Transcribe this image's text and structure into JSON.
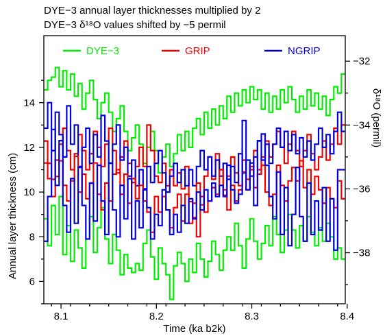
{
  "chart_data": {
    "type": "line",
    "title_lines": [
      "DYE−3 annual layer thicknesses multiplied by 2",
      "DYE−3 δ¹⁸O values shifted by −5 permil"
    ],
    "xlabel": "Time (ka b2k)",
    "ylabel_left": "Annual layer thickness (cm)",
    "ylabel_right": "δ¹⁸O (permil)",
    "xlim": [
      8.082,
      8.398
    ],
    "ylim_left": [
      5,
      17
    ],
    "ylim_right": [
      -39.6,
      -31.2
    ],
    "xticks": [
      8.1,
      8.2,
      8.3,
      8.4
    ],
    "xtick_labels": [
      "8.1",
      "8.2",
      "8.3",
      "8.4"
    ],
    "yticks_left": [
      6,
      8,
      10,
      12,
      14
    ],
    "ytick_labels_left": [
      "6",
      "8",
      "10",
      "12",
      "14"
    ],
    "yticks_right": [
      -38,
      -36,
      -34,
      -32
    ],
    "ytick_labels_right": [
      "−38",
      "−36",
      "−34",
      "−32"
    ],
    "legend": {
      "placement": "top",
      "entries": [
        "DYE−3",
        "GRIP",
        "NGRIP"
      ]
    },
    "colors": {
      "DYE−3": "#00ee00",
      "GRIP": "#ee0000",
      "NGRIP": "#0000dd"
    },
    "series": [
      {
        "name": "DYE−3",
        "axis": "right",
        "group": "d18O",
        "x": [
          8.082,
          8.086,
          8.09,
          8.094,
          8.098,
          8.102,
          8.106,
          8.11,
          8.114,
          8.118,
          8.122,
          8.126,
          8.13,
          8.134,
          8.138,
          8.142,
          8.146,
          8.15,
          8.154,
          8.158,
          8.162,
          8.166,
          8.17,
          8.174,
          8.178,
          8.182,
          8.186,
          8.19,
          8.194,
          8.198,
          8.202,
          8.206,
          8.21,
          8.214,
          8.218,
          8.222,
          8.226,
          8.23,
          8.234,
          8.238,
          8.242,
          8.246,
          8.25,
          8.254,
          8.258,
          8.262,
          8.266,
          8.27,
          8.274,
          8.278,
          8.282,
          8.286,
          8.29,
          8.294,
          8.298,
          8.302,
          8.306,
          8.31,
          8.314,
          8.318,
          8.322,
          8.326,
          8.33,
          8.334,
          8.338,
          8.342,
          8.346,
          8.35,
          8.354,
          8.358,
          8.362,
          8.366,
          8.37,
          8.374,
          8.378,
          8.382,
          8.386,
          8.39,
          8.394
        ],
        "y": [
          -32.9,
          -32.6,
          -32.5,
          -32.2,
          -32.8,
          -32.3,
          -32.9,
          -32.4,
          -33.1,
          -32.7,
          -33.5,
          -33.0,
          -32.6,
          -33.2,
          -33.8,
          -33.3,
          -33.0,
          -33.6,
          -34.2,
          -33.8,
          -33.4,
          -34.2,
          -34.8,
          -34.4,
          -34.0,
          -34.6,
          -35.2,
          -34.7,
          -34.2,
          -34.8,
          -35.5,
          -35.0,
          -34.6,
          -35.3,
          -34.9,
          -34.3,
          -34.8,
          -34.2,
          -34.7,
          -34.1,
          -33.8,
          -34.3,
          -33.6,
          -34.1,
          -33.5,
          -34.0,
          -33.4,
          -33.8,
          -33.1,
          -33.6,
          -33.0,
          -33.4,
          -32.9,
          -33.3,
          -32.8,
          -33.2,
          -32.9,
          -33.5,
          -33.0,
          -33.6,
          -33.1,
          -33.5,
          -32.9,
          -33.3,
          -32.8,
          -33.2,
          -33.6,
          -33.1,
          -33.5,
          -32.9,
          -33.4,
          -33.0,
          -33.5,
          -33.1,
          -33.7,
          -33.2,
          -32.8,
          -33.0,
          -32.4
        ]
      },
      {
        "name": "GRIP",
        "axis": "right",
        "group": "d18O",
        "x": [
          8.082,
          8.086,
          8.09,
          8.094,
          8.098,
          8.102,
          8.106,
          8.11,
          8.114,
          8.118,
          8.122,
          8.126,
          8.13,
          8.134,
          8.138,
          8.142,
          8.146,
          8.15,
          8.154,
          8.158,
          8.162,
          8.166,
          8.17,
          8.174,
          8.178,
          8.182,
          8.186,
          8.19,
          8.194,
          8.198,
          8.202,
          8.206,
          8.21,
          8.214,
          8.218,
          8.222,
          8.226,
          8.23,
          8.234,
          8.238,
          8.242,
          8.246,
          8.25,
          8.254,
          8.258,
          8.262,
          8.266,
          8.27,
          8.274,
          8.278,
          8.282,
          8.286,
          8.29,
          8.294,
          8.298,
          8.302,
          8.306,
          8.31,
          8.314,
          8.318,
          8.322,
          8.326,
          8.33,
          8.334,
          8.338,
          8.342,
          8.346,
          8.35,
          8.354,
          8.358,
          8.362,
          8.366,
          8.37,
          8.374,
          8.378,
          8.382,
          8.386,
          8.39,
          8.394
        ],
        "y": [
          -34.5,
          -35.2,
          -35.7,
          -35.1,
          -34.6,
          -34.1,
          -34.8,
          -35.4,
          -34.9,
          -34.3,
          -34.8,
          -35.4,
          -34.9,
          -34.2,
          -34.7,
          -35.3,
          -34.6,
          -34.1,
          -34.8,
          -35.5,
          -35.0,
          -34.5,
          -35.2,
          -35.8,
          -35.3,
          -34.7,
          -35.3,
          -34.0,
          -34.8,
          -35.6,
          -35.8,
          -35.2,
          -35.9,
          -35.4,
          -35.9,
          -35.5,
          -36.0,
          -35.3,
          -36.4,
          -36.9,
          -37.5,
          -36.5,
          -35.6,
          -35.0,
          -35.7,
          -34.9,
          -35.4,
          -36.2,
          -35.6,
          -35.0,
          -35.5,
          -35.9,
          -35.1,
          -35.7,
          -35.3,
          -34.8,
          -35.4,
          -35.0,
          -34.5,
          -35.0,
          -34.6,
          -34.2,
          -34.7,
          -35.2,
          -34.6,
          -34.2,
          -34.8,
          -35.3,
          -34.8,
          -34.3,
          -34.9,
          -35.4,
          -35.0,
          -34.5,
          -35.1,
          -34.6,
          -34.1,
          -34.6,
          -34.0
        ]
      },
      {
        "name": "NGRIP",
        "axis": "right",
        "group": "d18O",
        "x": [
          8.082,
          8.086,
          8.09,
          8.094,
          8.098,
          8.102,
          8.106,
          8.11,
          8.114,
          8.118,
          8.122,
          8.126,
          8.13,
          8.134,
          8.138,
          8.142,
          8.146,
          8.15,
          8.154,
          8.158,
          8.162,
          8.166,
          8.17,
          8.174,
          8.178,
          8.182,
          8.186,
          8.19,
          8.194,
          8.198,
          8.202,
          8.206,
          8.21,
          8.214,
          8.218,
          8.222,
          8.226,
          8.23,
          8.234,
          8.238,
          8.242,
          8.246,
          8.25,
          8.254,
          8.258,
          8.262,
          8.266,
          8.27,
          8.274,
          8.278,
          8.282,
          8.286,
          8.29,
          8.294,
          8.298,
          8.302,
          8.306,
          8.31,
          8.314,
          8.318,
          8.322,
          8.326,
          8.33,
          8.334,
          8.338,
          8.342,
          8.346,
          8.35,
          8.354,
          8.358,
          8.362,
          8.366,
          8.37,
          8.374,
          8.378,
          8.382,
          8.386,
          8.39,
          8.394
        ],
        "y": [
          -34.1,
          -33.3,
          -34.8,
          -33.6,
          -34.3,
          -35.0,
          -33.4,
          -34.6,
          -34.0,
          -35.3,
          -34.7,
          -34.1,
          -35.2,
          -34.3,
          -35.0,
          -33.7,
          -34.5,
          -35.2,
          -34.6,
          -34.0,
          -35.1,
          -34.7,
          -35.6,
          -35.1,
          -35.9,
          -35.4,
          -36.0,
          -35.3,
          -35.8,
          -35.2,
          -34.8,
          -35.5,
          -36.1,
          -35.6,
          -35.2,
          -35.8,
          -35.4,
          -35.9,
          -35.4,
          -35.9,
          -35.3,
          -34.8,
          -35.4,
          -35.0,
          -35.6,
          -35.1,
          -35.6,
          -35.2,
          -35.7,
          -35.3,
          -35.8,
          -34.9,
          -35.5,
          -35.1,
          -35.6,
          -35.0,
          -34.5,
          -35.1,
          -34.6,
          -35.2,
          -34.6,
          -34.1,
          -34.7,
          -34.2,
          -34.8,
          -34.3,
          -34.9,
          -34.4,
          -35.0,
          -34.5,
          -35.1,
          -34.6,
          -34.1,
          -34.7,
          -34.3,
          -34.9,
          -34.2,
          -33.6,
          -34.2
        ]
      },
      {
        "name": "DYE−3",
        "axis": "left",
        "group": "thickness",
        "x": [
          8.082,
          8.086,
          8.09,
          8.094,
          8.098,
          8.102,
          8.106,
          8.11,
          8.114,
          8.118,
          8.122,
          8.126,
          8.13,
          8.134,
          8.138,
          8.142,
          8.146,
          8.15,
          8.154,
          8.158,
          8.162,
          8.166,
          8.17,
          8.174,
          8.178,
          8.182,
          8.186,
          8.19,
          8.194,
          8.198,
          8.202,
          8.206,
          8.21,
          8.214,
          8.218,
          8.222,
          8.226,
          8.23,
          8.234,
          8.238,
          8.242,
          8.246,
          8.25,
          8.254,
          8.258,
          8.262,
          8.266,
          8.27,
          8.274,
          8.278,
          8.282,
          8.286,
          8.29,
          8.294,
          8.298,
          8.302,
          8.306,
          8.31,
          8.314,
          8.318,
          8.322,
          8.326,
          8.33,
          8.334,
          8.338,
          8.342,
          8.346,
          8.35,
          8.354,
          8.358,
          8.362,
          8.366,
          8.37,
          8.374,
          8.378,
          8.382,
          8.386,
          8.39,
          8.394
        ],
        "y": [
          8.8,
          7.6,
          9.4,
          8.1,
          9.8,
          7.2,
          8.5,
          6.9,
          8.3,
          7.5,
          6.6,
          7.9,
          8.9,
          7.3,
          8.4,
          9.3,
          7.9,
          6.8,
          8.1,
          7.4,
          6.3,
          7.2,
          6.6,
          6.4,
          6.8,
          6.5,
          7.7,
          8.3,
          7.1,
          6.1,
          7.5,
          6.8,
          6.3,
          5.2,
          6.7,
          7.3,
          6.8,
          6.0,
          7.0,
          6.4,
          7.7,
          7.0,
          6.2,
          6.9,
          7.8,
          7.2,
          6.5,
          7.4,
          8.0,
          7.4,
          8.6,
          7.6,
          6.6,
          7.9,
          8.8,
          7.8,
          7.0,
          7.7,
          8.5,
          7.6,
          8.9,
          8.1,
          7.3,
          8.3,
          9.0,
          8.3,
          7.5,
          8.5,
          7.8,
          8.9,
          8.2,
          7.6,
          8.4,
          7.8,
          8.6,
          8.0,
          7.0,
          7.5,
          7.0
        ]
      },
      {
        "name": "GRIP",
        "axis": "left",
        "group": "thickness",
        "x": [
          8.082,
          8.086,
          8.09,
          8.094,
          8.098,
          8.102,
          8.106,
          8.11,
          8.114,
          8.118,
          8.122,
          8.126,
          8.13,
          8.134,
          8.138,
          8.142,
          8.146,
          8.15,
          8.154,
          8.158,
          8.162,
          8.166,
          8.17,
          8.174,
          8.178,
          8.182,
          8.186,
          8.19,
          8.194,
          8.198,
          8.202,
          8.206,
          8.21,
          8.214,
          8.218,
          8.222,
          8.226,
          8.23,
          8.234,
          8.238,
          8.242,
          8.246,
          8.25,
          8.254,
          8.258,
          8.262,
          8.266,
          8.27,
          8.274,
          8.278,
          8.282,
          8.286,
          8.29,
          8.294,
          8.298,
          8.302,
          8.306,
          8.31,
          8.314,
          8.318,
          8.322,
          8.326,
          8.33,
          8.334,
          8.338,
          8.342,
          8.346,
          8.35,
          8.354,
          8.358,
          8.362,
          8.366,
          8.37,
          8.374,
          8.378,
          8.382,
          8.386,
          8.39,
          8.394
        ],
        "y": [
          11.3,
          10.6,
          9.8,
          10.7,
          11.4,
          10.3,
          9.6,
          10.5,
          11.6,
          10.0,
          10.8,
          9.7,
          10.4,
          11.3,
          9.9,
          9.2,
          10.4,
          9.6,
          10.8,
          11.0,
          9.9,
          10.8,
          9.5,
          10.6,
          9.7,
          10.3,
          9.6,
          9.1,
          8.2,
          9.8,
          9.1,
          9.8,
          9.2,
          8.4,
          9.3,
          9.9,
          8.7,
          9.9,
          8.6,
          9.5,
          10.4,
          9.8,
          9.1,
          9.6,
          10.2,
          9.9,
          11.0,
          10.1,
          9.2,
          10.3,
          9.6,
          10.1,
          10.9,
          10.1,
          11.0,
          10.2,
          10.8,
          11.2,
          10.0,
          9.4,
          9.9,
          11.2,
          10.3,
          9.6,
          10.5,
          11.1,
          10.5,
          11.4,
          10.2,
          11.0,
          9.9,
          10.7,
          10.1,
          9.5,
          10.2,
          9.7,
          9.3,
          10.5,
          9.7
        ]
      },
      {
        "name": "NGRIP",
        "axis": "left",
        "group": "thickness",
        "x": [
          8.082,
          8.086,
          8.09,
          8.094,
          8.098,
          8.102,
          8.106,
          8.11,
          8.114,
          8.118,
          8.122,
          8.126,
          8.13,
          8.134,
          8.138,
          8.142,
          8.146,
          8.15,
          8.154,
          8.158,
          8.162,
          8.166,
          8.17,
          8.174,
          8.178,
          8.182,
          8.186,
          8.19,
          8.194,
          8.198,
          8.202,
          8.206,
          8.21,
          8.214,
          8.218,
          8.222,
          8.226,
          8.23,
          8.234,
          8.238,
          8.242,
          8.246,
          8.25,
          8.254,
          8.258,
          8.262,
          8.266,
          8.27,
          8.274,
          8.278,
          8.282,
          8.286,
          8.29,
          8.294,
          8.298,
          8.302,
          8.306,
          8.31,
          8.314,
          8.318,
          8.322,
          8.326,
          8.33,
          8.334,
          8.338,
          8.342,
          8.346,
          8.35,
          8.354,
          8.358,
          8.362,
          8.366,
          8.37,
          8.374,
          8.378,
          8.382,
          8.386,
          8.39,
          8.394
        ],
        "y": [
          7.8,
          9.8,
          12.8,
          10.3,
          12.3,
          9.4,
          8.2,
          10.6,
          8.6,
          11.1,
          9.4,
          7.9,
          10.4,
          8.7,
          11.2,
          9.6,
          8.1,
          11.3,
          9.2,
          8.0,
          10.3,
          8.8,
          10.6,
          7.9,
          9.6,
          8.4,
          10.1,
          9.3,
          7.9,
          9.0,
          8.5,
          10.1,
          9.2,
          8.1,
          9.0,
          8.2,
          9.4,
          8.6,
          9.7,
          8.8,
          10.0,
          9.2,
          10.1,
          9.6,
          10.4,
          9.8,
          10.3,
          9.8,
          11.2,
          10.1,
          9.5,
          9.9,
          13.2,
          10.1,
          11.3,
          9.4,
          12.3,
          12.6,
          11.2,
          9.8,
          8.8,
          10.9,
          8.1,
          10.2,
          7.6,
          9.0,
          11.1,
          8.9,
          7.8,
          10.4,
          8.1,
          9.6,
          8.3,
          10.2,
          7.8,
          9.7,
          7.4,
          11.0,
          11.0
        ]
      }
    ]
  }
}
